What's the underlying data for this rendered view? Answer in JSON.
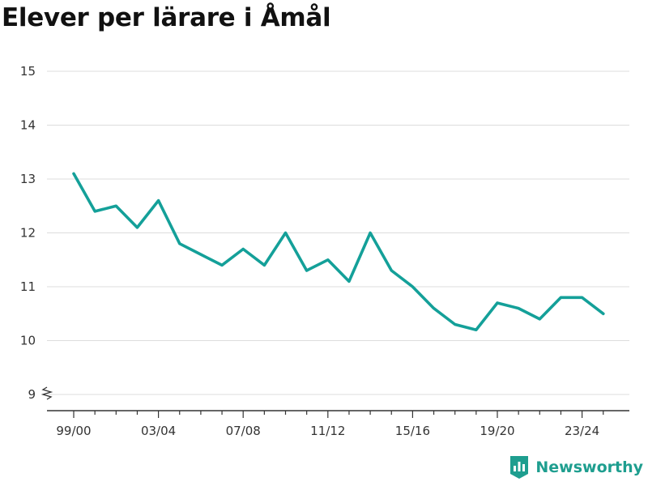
{
  "title": "Elever per lärare i Åmål",
  "brand": {
    "name": "Newsworthy",
    "icon": "newsworthy-logo-icon"
  },
  "colors": {
    "line": "#14a099",
    "grid": "#dddddd",
    "axis": "#333333",
    "brand": "#1e9e8f"
  },
  "chart_data": {
    "type": "line",
    "title": "Elever per lärare i Åmål",
    "xlabel": "",
    "ylabel": "",
    "ylim": [
      9,
      15.3
    ],
    "y_axis_break": true,
    "grid": true,
    "y_ticks": [
      9,
      10,
      11,
      12,
      13,
      14,
      15
    ],
    "x_tick_labels": [
      "99/00",
      "03/04",
      "07/08",
      "11/12",
      "15/16",
      "19/20",
      "23/24"
    ],
    "categories": [
      "99/00",
      "00/01",
      "01/02",
      "02/03",
      "03/04",
      "04/05",
      "05/06",
      "06/07",
      "07/08",
      "08/09",
      "09/10",
      "10/11",
      "11/12",
      "12/13",
      "13/14",
      "14/15",
      "15/16",
      "16/17",
      "17/18",
      "18/19",
      "19/20",
      "20/21",
      "21/22",
      "22/23",
      "23/24",
      "24/25"
    ],
    "series": [
      {
        "values": [
          13.1,
          12.4,
          12.5,
          12.1,
          12.6,
          11.8,
          11.6,
          11.4,
          11.7,
          11.4,
          12.0,
          11.3,
          11.5,
          11.1,
          12.0,
          11.3,
          11.0,
          10.6,
          10.3,
          10.2,
          10.7,
          10.6,
          10.4,
          10.8,
          10.8,
          10.5
        ]
      }
    ]
  }
}
